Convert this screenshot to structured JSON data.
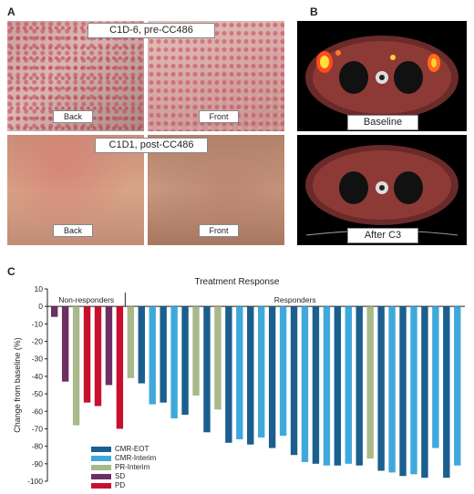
{
  "panels": {
    "a": "A",
    "b": "B",
    "c": "C"
  },
  "panel_a": {
    "pre_caption": "C1D-6, pre-CC486",
    "post_caption": "C1D1, post-CC486",
    "back": "Back",
    "front": "Front"
  },
  "panel_b": {
    "baseline": "Baseline",
    "after": "After C3"
  },
  "chart_data": {
    "type": "bar",
    "title": "Treatment Response",
    "ylabel": "Change from baseline (%)",
    "ylim": [
      -100,
      10
    ],
    "yticks": [
      10,
      0,
      -10,
      -20,
      -30,
      -40,
      -50,
      -60,
      -70,
      -80,
      -90,
      -100
    ],
    "groups": [
      "Non-responders",
      "Responders"
    ],
    "colors": {
      "CMR-EOT": "#1b5f8f",
      "CMR-Interim": "#3fa9dc",
      "PR-Interim": "#a9b98a",
      "SD": "#6e2f63",
      "PD": "#c8102e"
    },
    "legend": [
      "CMR-EOT",
      "CMR-Interim",
      "PR-Interim",
      "SD",
      "PD"
    ],
    "bars": [
      {
        "v": -6,
        "c": "SD"
      },
      {
        "v": -43,
        "c": "SD"
      },
      {
        "v": -68,
        "c": "PR-Interim"
      },
      {
        "v": -55,
        "c": "PD"
      },
      {
        "v": -57,
        "c": "PD"
      },
      {
        "v": -45,
        "c": "SD"
      },
      {
        "v": -70,
        "c": "PD"
      },
      {
        "v": -41,
        "c": "PR-Interim"
      },
      {
        "v": -44,
        "c": "CMR-EOT"
      },
      {
        "v": -56,
        "c": "CMR-Interim"
      },
      {
        "v": -55,
        "c": "CMR-EOT"
      },
      {
        "v": -64,
        "c": "CMR-Interim"
      },
      {
        "v": -62,
        "c": "CMR-EOT"
      },
      {
        "v": -51,
        "c": "PR-Interim"
      },
      {
        "v": -72,
        "c": "CMR-EOT"
      },
      {
        "v": -59,
        "c": "PR-Interim"
      },
      {
        "v": -78,
        "c": "CMR-EOT"
      },
      {
        "v": -76,
        "c": "CMR-Interim"
      },
      {
        "v": -79,
        "c": "CMR-EOT"
      },
      {
        "v": -75,
        "c": "CMR-Interim"
      },
      {
        "v": -81,
        "c": "CMR-EOT"
      },
      {
        "v": -74,
        "c": "CMR-Interim"
      },
      {
        "v": -85,
        "c": "CMR-EOT"
      },
      {
        "v": -89,
        "c": "CMR-Interim"
      },
      {
        "v": -90,
        "c": "CMR-EOT"
      },
      {
        "v": -91,
        "c": "CMR-Interim"
      },
      {
        "v": -91,
        "c": "CMR-EOT"
      },
      {
        "v": -90,
        "c": "CMR-Interim"
      },
      {
        "v": -91,
        "c": "CMR-EOT"
      },
      {
        "v": -87,
        "c": "PR-Interim"
      },
      {
        "v": -94,
        "c": "CMR-EOT"
      },
      {
        "v": -95,
        "c": "CMR-Interim"
      },
      {
        "v": -97,
        "c": "CMR-EOT"
      },
      {
        "v": -96,
        "c": "CMR-Interim"
      },
      {
        "v": -98,
        "c": "CMR-EOT"
      },
      {
        "v": -81,
        "c": "CMR-Interim"
      },
      {
        "v": -98,
        "c": "CMR-EOT"
      },
      {
        "v": -91,
        "c": "CMR-Interim"
      }
    ]
  }
}
